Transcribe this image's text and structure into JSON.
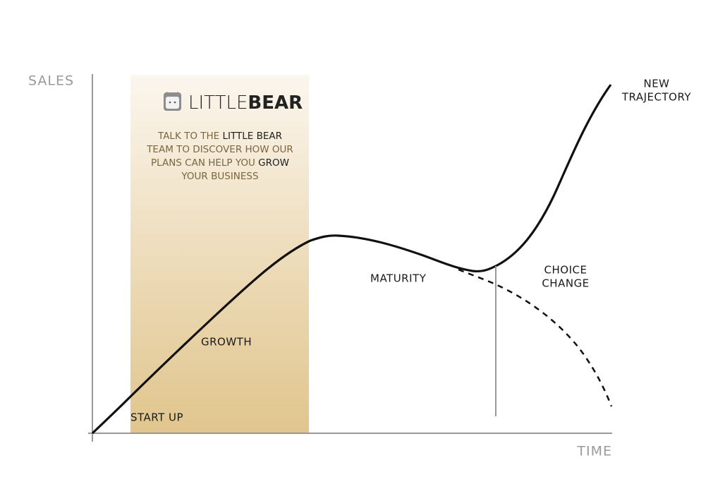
{
  "axes": {
    "y_label": "SALES",
    "x_label": "TIME"
  },
  "logo": {
    "light": "LITTLE",
    "bold": "BEAR"
  },
  "callout": {
    "lines": [
      [
        {
          "text": "TALK TO THE ",
          "strong": false
        },
        {
          "text": "LITTLE BEAR",
          "strong": true
        }
      ],
      [
        {
          "text": "TEAM TO DISCOVER HOW OUR",
          "strong": false
        }
      ],
      [
        {
          "text": "PLANS CAN HELP YOU ",
          "strong": false
        },
        {
          "text": "GROW",
          "strong": true
        }
      ],
      [
        {
          "text": "YOUR BUSINESS",
          "strong": false
        }
      ]
    ]
  },
  "stages": {
    "start_up": "START UP",
    "growth": "GROWTH",
    "maturity": "MATURITY",
    "choice_change": [
      "CHOICE",
      "CHANGE"
    ],
    "new_trajectory": [
      "NEW",
      "TRAJECTORY"
    ]
  }
}
